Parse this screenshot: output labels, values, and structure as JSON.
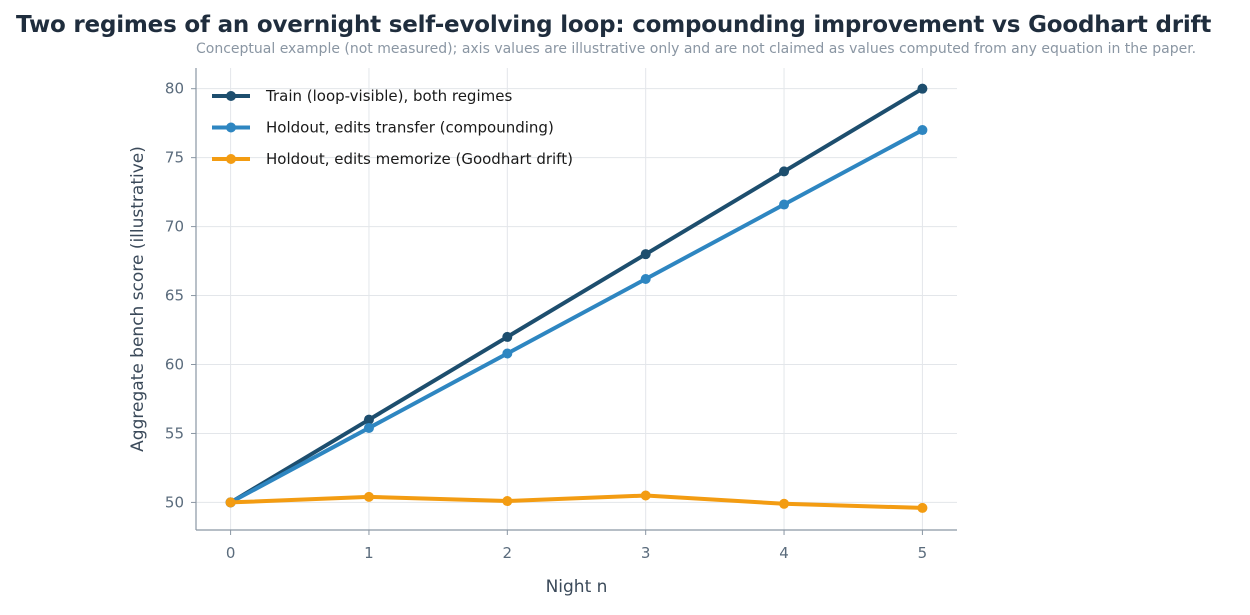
{
  "chart_data": {
    "type": "line",
    "title": "Two regimes of an overnight self-evolving loop: compounding improvement vs Goodhart drift",
    "subtitle": "Conceptual example (not measured); axis values are illustrative only and are not claimed as values computed from any equation in the paper.",
    "xlabel": "Night n",
    "ylabel": "Aggregate bench score (illustrative)",
    "x": [
      0,
      1,
      2,
      3,
      4,
      5
    ],
    "xticks": [
      "0",
      "1",
      "2",
      "3",
      "4",
      "5"
    ],
    "yticks": [
      "50",
      "55",
      "60",
      "65",
      "70",
      "75",
      "80"
    ],
    "xlim": [
      -0.25,
      5.25
    ],
    "ylim": [
      48,
      81.5
    ],
    "grid": true,
    "legend_position": "top-left",
    "series": [
      {
        "name": "Train (loop-visible), both regimes",
        "color": "#1d4e6e",
        "values": [
          50,
          56,
          62,
          68,
          74,
          80
        ]
      },
      {
        "name": "Holdout, edits transfer (compounding)",
        "color": "#2e86c1",
        "values": [
          50,
          55.4,
          60.8,
          66.2,
          71.6,
          77
        ]
      },
      {
        "name": "Holdout, edits memorize (Goodhart drift)",
        "color": "#f39c12",
        "values": [
          50,
          50.4,
          50.1,
          50.5,
          49.9,
          49.6
        ]
      }
    ]
  }
}
